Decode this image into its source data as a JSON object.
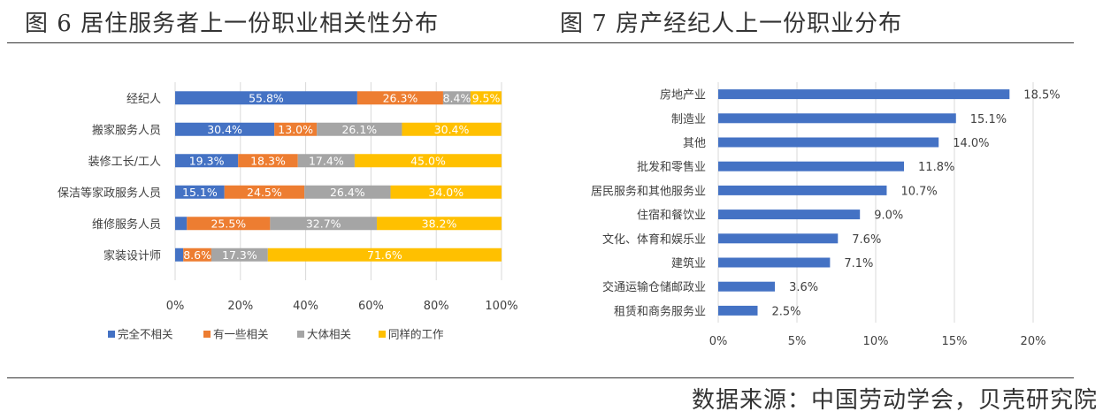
{
  "titles": {
    "left": "图 6  居住服务者上一份职业相关性分布",
    "right": "图 7  房产经纪人上一份职业分布"
  },
  "source": "数据来源：中国劳动学会，贝壳研究院",
  "colors": {
    "blue": "#4472C4",
    "orange": "#ED7D31",
    "gray": "#A5A5A5",
    "yellow": "#FFC000",
    "grid": "#D9D9D9",
    "text": "#404040"
  },
  "chart_data": [
    {
      "type": "bar",
      "orientation": "horizontal",
      "stacked": "percent",
      "title": "图 6  居住服务者上一份职业相关性分布",
      "categories": [
        "经纪人",
        "搬家服务人员",
        "装修工长/工人",
        "保洁等家政服务人员",
        "维修服务人员",
        "家装设计师"
      ],
      "series": [
        {
          "name": "完全不相关",
          "values": [
            55.8,
            30.4,
            19.3,
            15.1,
            3.6,
            2.5
          ],
          "labels": [
            "55.8%",
            "30.4%",
            "19.3%",
            "15.1%",
            "",
            ""
          ]
        },
        {
          "name": "有一些相关",
          "values": [
            26.3,
            13.0,
            18.3,
            24.5,
            25.5,
            8.6
          ],
          "labels": [
            "26.3%",
            "13.0%",
            "18.3%",
            "24.5%",
            "25.5%",
            "8.6%"
          ]
        },
        {
          "name": "大体相关",
          "values": [
            8.4,
            26.1,
            17.4,
            26.4,
            32.7,
            17.3
          ],
          "labels": [
            "8.4%",
            "26.1%",
            "17.4%",
            "26.4%",
            "32.7%",
            "17.3%"
          ]
        },
        {
          "name": "同样的工作",
          "values": [
            9.5,
            30.4,
            45.0,
            34.0,
            38.2,
            71.6
          ],
          "labels": [
            "9.5%",
            "30.4%",
            "45.0%",
            "34.0%",
            "38.2%",
            "71.6%"
          ]
        }
      ],
      "xlim": [
        0,
        100
      ],
      "xticks": [
        "0%",
        "20%",
        "40%",
        "60%",
        "80%",
        "100%"
      ],
      "grid": true,
      "legend_position": "bottom"
    },
    {
      "type": "bar",
      "orientation": "horizontal",
      "title": "图 7  房产经纪人上一份职业分布",
      "categories": [
        "房地产业",
        "制造业",
        "其他",
        "批发和零售业",
        "居民服务和其他服务业",
        "住宿和餐饮业",
        "文化、体育和娱乐业",
        "建筑业",
        "交通运输仓储邮政业",
        "租赁和商务服务业"
      ],
      "values": [
        18.5,
        15.1,
        14.0,
        11.8,
        10.7,
        9.0,
        7.6,
        7.1,
        3.6,
        2.5
      ],
      "labels": [
        "18.5%",
        "15.1%",
        "14.0%",
        "11.8%",
        "10.7%",
        "9.0%",
        "7.6%",
        "7.1%",
        "3.6%",
        "2.5%"
      ],
      "xlim": [
        0,
        20
      ],
      "xticks": [
        "0%",
        "5%",
        "10%",
        "15%",
        "20%"
      ],
      "grid": true
    }
  ]
}
